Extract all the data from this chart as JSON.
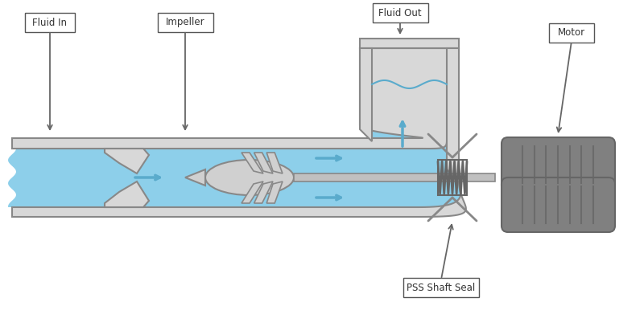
{
  "bg_color": "#ffffff",
  "fluid_color": "#8dcfea",
  "fluid_dark": "#5aabcc",
  "casing_color": "#d8d8d8",
  "casing_edge": "#888888",
  "dark_gray": "#666666",
  "mid_gray": "#909090",
  "light_gray": "#d0d0d0",
  "shaft_gray": "#c0c0c0",
  "motor_gray": "#808080",
  "arrow_color": "#5aabcc",
  "label_box_color": "#ffffff",
  "label_box_edge": "#555555",
  "label_text_color": "#333333",
  "labels": {
    "fluid_in": "Fluid In",
    "impeller": "Impeller",
    "fluid_out": "Fluid Out",
    "pss": "PSS Shaft Seal",
    "motor": "Motor"
  }
}
